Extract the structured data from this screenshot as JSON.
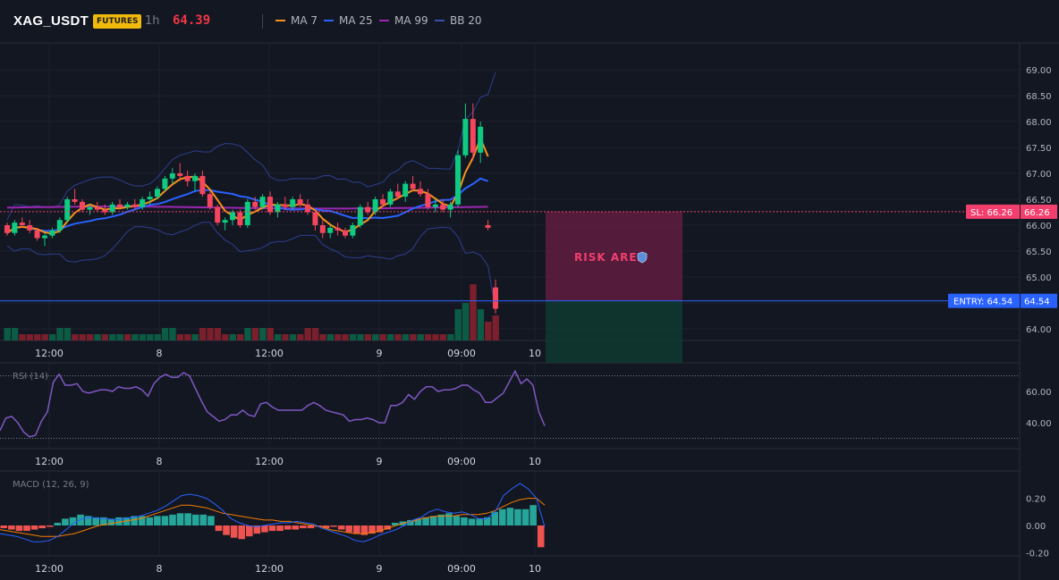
{
  "header": {
    "symbol": "XAG_USDT",
    "badge": "FUTURES",
    "timeframe": "1h",
    "last_price": "64.39",
    "price_color": "#f23645"
  },
  "indicators": [
    {
      "name": "MA 7",
      "color": "#f7931a"
    },
    {
      "name": "MA 25",
      "color": "#2962ff"
    },
    {
      "name": "MA 99",
      "color": "#9c27b0"
    },
    {
      "name": "BB 20",
      "color": "#3a4fa8"
    }
  ],
  "colors": {
    "up": "#0ecb81",
    "down": "#f6465d",
    "background": "#131722",
    "sl": "#f23f6e",
    "entry": "#2962ff",
    "risk_area": "#6b1d43",
    "reward_area": "#0f3a30"
  },
  "price_axis": {
    "ticks": [
      "69.00",
      "68.50",
      "68.00",
      "67.50",
      "67.00",
      "66.50",
      "66.00",
      "65.50",
      "65.00",
      "64.50",
      "64.00"
    ],
    "min": 63.75,
    "max": 69.25
  },
  "time_axis": {
    "labels": [
      "12:00",
      "8",
      "12:00",
      "9",
      "09:00",
      "10"
    ]
  },
  "trade": {
    "sl_label": "SL: 66.26",
    "sl_value": "66.26",
    "entry_label": "ENTRY: 64.54",
    "entry_value": "64.54",
    "risk_label": "RISK AREA",
    "shield_icon": "shield-icon"
  },
  "rsi": {
    "label": "RSI (14)",
    "ticks": [
      "60.00",
      "40.00"
    ],
    "upper_band": 70,
    "lower_band": 30,
    "min": 25,
    "max": 75,
    "color": "#7e57c2",
    "values": [
      35,
      43,
      44,
      40,
      34,
      31,
      32,
      41,
      47,
      66,
      71,
      64,
      64,
      65,
      60,
      59,
      60,
      61,
      61,
      60,
      63,
      62,
      62,
      63,
      61,
      57,
      65,
      69,
      71,
      69,
      69,
      72,
      70,
      62,
      54,
      47,
      44,
      41,
      42,
      45,
      45,
      48,
      45,
      44,
      52,
      53,
      50,
      48,
      48,
      48,
      48,
      48,
      51,
      53,
      51,
      48,
      47,
      46,
      45,
      41,
      42,
      42,
      43,
      42,
      40,
      40,
      51,
      51,
      53,
      58,
      55,
      60,
      63,
      63,
      60,
      61,
      61,
      62,
      64,
      64,
      61,
      59,
      53,
      53,
      56,
      59,
      66,
      73,
      65,
      68,
      64,
      47,
      38
    ]
  },
  "macd": {
    "label": "MACD (12, 26, 9)",
    "ticks": [
      "0.20",
      "0.00",
      "-0.20"
    ],
    "min": -0.25,
    "max": 0.32,
    "macd_color": "#2962ff",
    "signal_color": "#f57c00",
    "hist": [
      -0.02,
      -0.03,
      -0.04,
      -0.04,
      -0.03,
      -0.02,
      -0.01,
      0.02,
      0.05,
      0.06,
      0.08,
      0.07,
      0.06,
      0.06,
      0.05,
      0.06,
      0.06,
      0.07,
      0.07,
      0.06,
      0.07,
      0.07,
      0.08,
      0.09,
      0.09,
      0.08,
      0.08,
      0.07,
      -0.04,
      -0.07,
      -0.09,
      -0.1,
      -0.08,
      -0.06,
      -0.05,
      -0.04,
      -0.04,
      -0.03,
      -0.03,
      -0.02,
      -0.02,
      -0.01,
      -0.02,
      -0.01,
      -0.03,
      -0.05,
      -0.06,
      -0.07,
      -0.06,
      -0.05,
      -0.03,
      0.02,
      0.03,
      0.04,
      0.05,
      0.06,
      0.07,
      0.08,
      0.09,
      0.07,
      0.06,
      0.05,
      0.05,
      0.06,
      0.1,
      0.12,
      0.13,
      0.12,
      0.12,
      0.15,
      -0.16
    ],
    "macd_line": [
      -0.06,
      -0.07,
      -0.08,
      -0.1,
      -0.12,
      -0.12,
      -0.11,
      -0.08,
      -0.03,
      0.02,
      0.05,
      0.06,
      0.05,
      0.05,
      0.04,
      0.05,
      0.06,
      0.07,
      0.09,
      0.11,
      0.14,
      0.18,
      0.22,
      0.23,
      0.22,
      0.2,
      0.16,
      0.11,
      0.05,
      0.02,
      0.0,
      -0.01,
      0.0,
      0.01,
      0.02,
      0.02,
      0.03,
      0.02,
      0.01,
      -0.02,
      -0.04,
      -0.06,
      -0.08,
      -0.11,
      -0.12,
      -0.1,
      -0.07,
      -0.05,
      -0.03,
      0.0,
      0.04,
      0.06,
      0.1,
      0.12,
      0.1,
      0.09,
      0.1,
      0.08,
      0.05,
      0.05,
      0.1,
      0.22,
      0.27,
      0.31,
      0.27,
      0.2,
      -0.01
    ],
    "signal_line": [
      -0.03,
      -0.04,
      -0.05,
      -0.06,
      -0.07,
      -0.08,
      -0.08,
      -0.08,
      -0.07,
      -0.06,
      -0.04,
      -0.02,
      0.0,
      0.01,
      0.02,
      0.03,
      0.04,
      0.05,
      0.07,
      0.09,
      0.11,
      0.13,
      0.15,
      0.15,
      0.14,
      0.13,
      0.11,
      0.09,
      0.08,
      0.07,
      0.06,
      0.05,
      0.04,
      0.04,
      0.03,
      0.03,
      0.02,
      0.01,
      0.0,
      -0.01,
      -0.03,
      -0.04,
      -0.05,
      -0.06,
      -0.06,
      -0.05,
      -0.04,
      -0.02,
      0.0,
      0.02,
      0.03,
      0.05,
      0.06,
      0.07,
      0.07,
      0.07,
      0.08,
      0.08,
      0.08,
      0.09,
      0.11,
      0.14,
      0.17,
      0.19,
      0.2,
      0.2,
      0.15
    ]
  },
  "candles": [
    [
      66.0,
      66.05,
      65.8,
      65.85
    ],
    [
      65.85,
      66.1,
      65.8,
      66.05
    ],
    [
      66.05,
      66.15,
      65.95,
      66.0
    ],
    [
      66.0,
      66.1,
      65.85,
      65.9
    ],
    [
      65.9,
      65.95,
      65.7,
      65.75
    ],
    [
      65.75,
      65.85,
      65.6,
      65.8
    ],
    [
      65.8,
      65.95,
      65.75,
      65.9
    ],
    [
      65.9,
      66.15,
      65.85,
      66.1
    ],
    [
      66.1,
      66.55,
      66.05,
      66.5
    ],
    [
      66.5,
      66.7,
      66.4,
      66.45
    ],
    [
      66.45,
      66.5,
      66.25,
      66.3
    ],
    [
      66.3,
      66.4,
      66.2,
      66.35
    ],
    [
      66.35,
      66.45,
      66.25,
      66.3
    ],
    [
      66.3,
      66.4,
      66.2,
      66.25
    ],
    [
      66.25,
      66.45,
      66.2,
      66.4
    ],
    [
      66.4,
      66.5,
      66.3,
      66.35
    ],
    [
      66.35,
      66.45,
      66.3,
      66.4
    ],
    [
      66.4,
      66.5,
      66.3,
      66.35
    ],
    [
      66.35,
      66.55,
      66.3,
      66.5
    ],
    [
      66.5,
      66.65,
      66.4,
      66.55
    ],
    [
      66.55,
      66.75,
      66.5,
      66.7
    ],
    [
      66.7,
      66.95,
      66.65,
      66.9
    ],
    [
      66.9,
      67.1,
      66.8,
      67.0
    ],
    [
      67.0,
      67.2,
      66.85,
      66.95
    ],
    [
      66.95,
      67.05,
      66.75,
      66.85
    ],
    [
      66.85,
      67.0,
      66.65,
      66.95
    ],
    [
      66.95,
      67.05,
      66.55,
      66.6
    ],
    [
      66.6,
      66.65,
      66.3,
      66.35
    ],
    [
      66.35,
      66.4,
      66.0,
      66.05
    ],
    [
      66.05,
      66.15,
      65.9,
      66.1
    ],
    [
      66.1,
      66.3,
      66.0,
      66.25
    ],
    [
      66.25,
      66.3,
      65.95,
      66.0
    ],
    [
      66.0,
      66.5,
      65.95,
      66.45
    ],
    [
      66.45,
      66.55,
      66.3,
      66.35
    ],
    [
      66.35,
      66.6,
      66.3,
      66.55
    ],
    [
      66.55,
      66.65,
      66.2,
      66.25
    ],
    [
      66.25,
      66.45,
      66.15,
      66.4
    ],
    [
      66.4,
      66.55,
      66.3,
      66.35
    ],
    [
      66.35,
      66.55,
      66.3,
      66.5
    ],
    [
      66.5,
      66.6,
      66.35,
      66.4
    ],
    [
      66.4,
      66.5,
      66.2,
      66.25
    ],
    [
      66.25,
      66.3,
      65.9,
      66.0
    ],
    [
      66.0,
      66.1,
      65.75,
      65.85
    ],
    [
      65.85,
      66.0,
      65.75,
      65.95
    ],
    [
      65.95,
      66.05,
      65.8,
      65.9
    ],
    [
      65.9,
      65.95,
      65.75,
      65.8
    ],
    [
      65.8,
      66.05,
      65.75,
      66.0
    ],
    [
      66.0,
      66.4,
      65.95,
      66.35
    ],
    [
      66.35,
      66.45,
      66.2,
      66.25
    ],
    [
      66.25,
      66.55,
      66.2,
      66.5
    ],
    [
      66.5,
      66.6,
      66.35,
      66.4
    ],
    [
      66.4,
      66.7,
      66.35,
      66.65
    ],
    [
      66.65,
      66.8,
      66.5,
      66.55
    ],
    [
      66.55,
      66.85,
      66.45,
      66.8
    ],
    [
      66.8,
      66.95,
      66.65,
      66.7
    ],
    [
      66.7,
      66.85,
      66.55,
      66.6
    ],
    [
      66.6,
      66.7,
      66.3,
      66.35
    ],
    [
      66.35,
      66.5,
      66.25,
      66.4
    ],
    [
      66.4,
      66.5,
      66.25,
      66.3
    ],
    [
      66.3,
      66.45,
      66.15,
      66.4
    ],
    [
      66.4,
      67.45,
      66.35,
      67.35
    ],
    [
      67.35,
      68.35,
      67.3,
      68.05
    ],
    [
      68.05,
      68.35,
      67.25,
      67.4
    ],
    [
      67.4,
      68.0,
      67.2,
      67.9
    ],
    [
      66.0,
      66.1,
      65.9,
      65.95
    ],
    [
      64.8,
      64.95,
      64.3,
      64.39
    ]
  ],
  "volumes": [
    [
      2,
      0
    ],
    [
      2,
      0
    ],
    [
      1,
      1
    ],
    [
      1,
      1
    ],
    [
      1,
      1
    ],
    [
      1,
      1
    ],
    [
      1,
      0
    ],
    [
      2,
      0
    ],
    [
      2,
      0
    ],
    [
      1,
      1
    ],
    [
      1,
      1
    ],
    [
      1,
      1
    ],
    [
      1,
      0
    ],
    [
      1,
      1
    ],
    [
      1,
      0
    ],
    [
      1,
      0
    ],
    [
      1,
      1
    ],
    [
      1,
      0
    ],
    [
      1,
      0
    ],
    [
      1,
      0
    ],
    [
      1,
      0
    ],
    [
      2,
      0
    ],
    [
      2,
      0
    ],
    [
      1,
      1
    ],
    [
      1,
      1
    ],
    [
      1,
      0
    ],
    [
      2,
      1
    ],
    [
      2,
      1
    ],
    [
      2,
      1
    ],
    [
      1,
      1
    ],
    [
      1,
      0
    ],
    [
      1,
      1
    ],
    [
      2,
      0
    ],
    [
      2,
      1
    ],
    [
      2,
      0
    ],
    [
      2,
      1
    ],
    [
      1,
      0
    ],
    [
      1,
      1
    ],
    [
      1,
      0
    ],
    [
      1,
      1
    ],
    [
      2,
      1
    ],
    [
      2,
      1
    ],
    [
      1,
      1
    ],
    [
      1,
      0
    ],
    [
      1,
      1
    ],
    [
      1,
      1
    ],
    [
      1,
      0
    ],
    [
      1,
      0
    ],
    [
      1,
      1
    ],
    [
      1,
      0
    ],
    [
      1,
      1
    ],
    [
      1,
      0
    ],
    [
      1,
      1
    ],
    [
      1,
      0
    ],
    [
      1,
      1
    ],
    [
      1,
      0
    ],
    [
      1,
      1
    ],
    [
      1,
      1
    ],
    [
      1,
      1
    ],
    [
      1,
      0
    ],
    [
      5,
      0
    ],
    [
      6,
      0
    ],
    [
      9,
      1
    ],
    [
      5,
      0
    ],
    [
      3,
      1
    ],
    [
      4,
      1
    ]
  ]
}
